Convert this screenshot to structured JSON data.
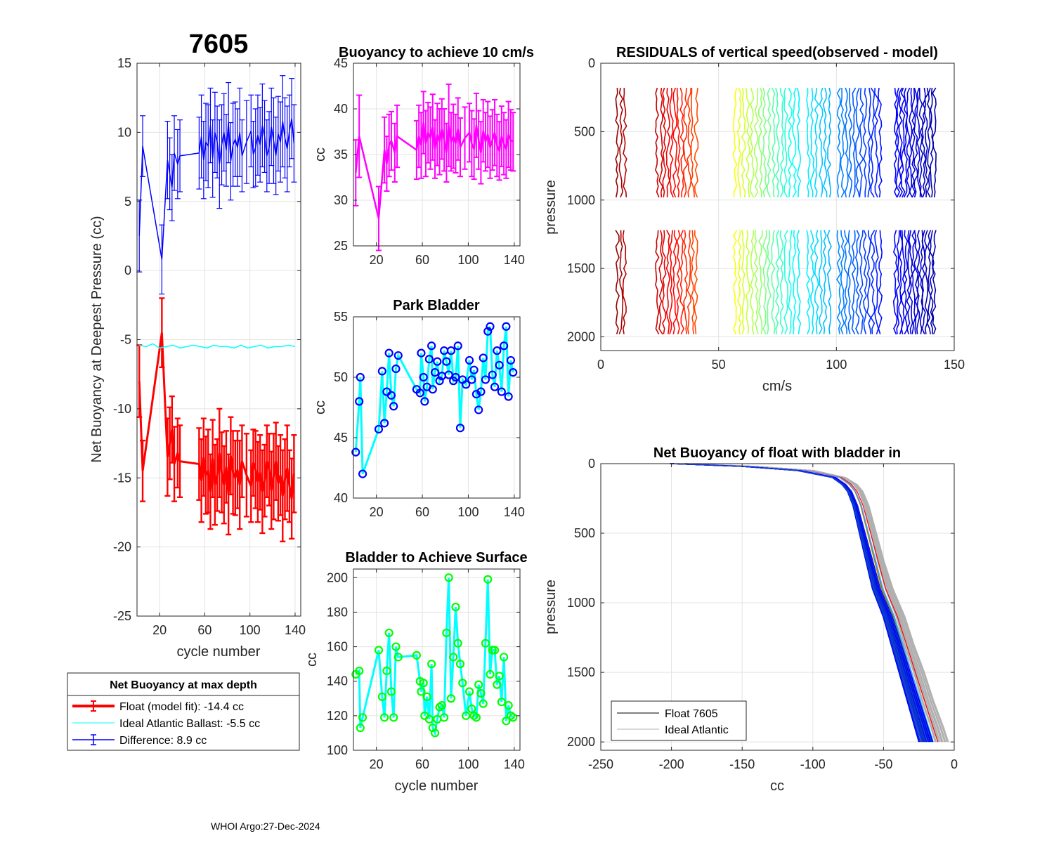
{
  "figure_title": "7605",
  "footer": "WHOI Argo:27-Dec-2024",
  "colors": {
    "float": "#ff0000",
    "ideal": "#00ffff",
    "difference": "#0000ff",
    "magenta": "#ff00ff",
    "park_marker": "#0000ff",
    "surface_marker": "#00ff00",
    "connector": "#00ffff",
    "grid": "#e3e3e3",
    "ideal_profile": "#b0b0b0"
  },
  "legend_main": {
    "title": "Net Buoyancy at max depth",
    "entries": [
      "Float (model fit): -14.4 cc",
      "Ideal Atlantic Ballast:  -5.5 cc",
      "Difference:   8.9 cc"
    ]
  },
  "legend_profile": {
    "entries": [
      "Float 7605",
      "Ideal Atlantic"
    ]
  },
  "chart_data": [
    {
      "id": "net_buoyancy",
      "type": "errorbar",
      "title": "7605",
      "xlabel": "cycle number",
      "ylabel": "Net Buoyancy at Deepest Pressure (cc)",
      "xlim": [
        0,
        145
      ],
      "ylim": [
        -25,
        15
      ],
      "xticks": [
        20,
        60,
        100,
        140
      ],
      "yticks": [
        -25,
        -20,
        -15,
        -10,
        -5,
        0,
        5,
        10,
        15
      ],
      "series": [
        {
          "name": "Float (model fit)",
          "color": "#ff0000",
          "x": [
            2,
            5,
            22,
            27,
            29,
            31,
            33,
            36,
            38,
            55,
            57,
            59,
            61,
            63,
            65,
            67,
            69,
            71,
            73,
            75,
            77,
            79,
            81,
            83,
            85,
            87,
            89,
            91,
            93,
            97,
            101,
            103,
            105,
            107,
            109,
            111,
            113,
            115,
            117,
            119,
            121,
            123,
            125,
            127,
            129,
            131,
            133,
            135,
            137,
            139
          ],
          "y": [
            -8,
            -14.5,
            -4.5,
            -13.5,
            -12.5,
            -11.5,
            -14,
            -13.2,
            -13.8,
            -14,
            -15.2,
            -13.5,
            -14.8,
            -14.5,
            -16,
            -13.6,
            -15.5,
            -14.8,
            -13.2,
            -14.6,
            -15.5,
            -14.2,
            -16.2,
            -13.4,
            -14.6,
            -15,
            -14.4,
            -15.5,
            -13.8,
            -14.8,
            -15.6,
            -13.9,
            -14.4,
            -15.3,
            -14.6,
            -16,
            -15.2,
            -13.8,
            -14.4,
            -15.9,
            -14.9,
            -13.8,
            -15.4,
            -14.8,
            -16.3,
            -15.1,
            -14.3,
            -15.6,
            -16.5,
            -14.7
          ],
          "err": [
            2.6,
            2.2,
            2.5,
            2.8,
            2.6,
            2.4,
            2.7,
            2.5,
            2.6,
            2.6,
            3.0,
            2.8,
            2.8,
            3.0,
            2.7,
            2.8,
            2.9,
            2.6,
            3.2,
            2.9,
            2.8,
            2.6,
            2.9,
            2.8,
            3.0,
            2.7,
            2.8,
            3.2,
            2.6,
            3.0,
            2.6,
            2.4,
            2.8,
            2.9,
            2.7,
            3.0,
            2.6,
            2.6,
            2.6,
            2.8,
            3.1,
            2.8,
            2.7,
            2.9,
            3.3,
            2.9,
            3.1,
            2.6,
            2.9,
            2.8
          ]
        },
        {
          "name": "Ideal Atlantic Ballast",
          "color": "#00ffff",
          "x": [
            2,
            8,
            14,
            20,
            26,
            32,
            38,
            44,
            50,
            56,
            62,
            68,
            74,
            80,
            86,
            92,
            98,
            104,
            110,
            116,
            122,
            128,
            134,
            140
          ],
          "y": [
            -5.4,
            -5.5,
            -5.3,
            -5.6,
            -5.5,
            -5.4,
            -5.6,
            -5.5,
            -5.4,
            -5.5,
            -5.6,
            -5.4,
            -5.5,
            -5.5,
            -5.6,
            -5.4,
            -5.6,
            -5.5,
            -5.4,
            -5.6,
            -5.5,
            -5.5,
            -5.4,
            -5.5
          ]
        },
        {
          "name": "Difference",
          "color": "#0000ff",
          "x": [
            2,
            5,
            22,
            27,
            29,
            31,
            33,
            36,
            38,
            55,
            57,
            59,
            61,
            63,
            65,
            67,
            69,
            71,
            73,
            75,
            77,
            79,
            81,
            83,
            85,
            87,
            89,
            91,
            93,
            97,
            101,
            103,
            105,
            107,
            109,
            111,
            113,
            115,
            117,
            119,
            121,
            123,
            125,
            127,
            129,
            131,
            133,
            135,
            137,
            139
          ],
          "y": [
            2.5,
            9,
            0.8,
            8,
            7,
            6,
            8.5,
            7.7,
            8.3,
            8.5,
            9.7,
            8,
            9.3,
            9,
            10.5,
            8.1,
            10,
            9.3,
            7.7,
            9.1,
            10,
            8.7,
            10.7,
            7.9,
            9.1,
            9.5,
            8.9,
            10,
            8.3,
            9.3,
            10.1,
            8.4,
            8.9,
            9.8,
            9.1,
            10.5,
            9.7,
            8.3,
            8.9,
            10.4,
            9.4,
            8.3,
            9.9,
            9.3,
            10.8,
            9.6,
            8.8,
            10.1,
            11,
            9.2
          ],
          "err": [
            2.6,
            2.2,
            2.5,
            2.8,
            2.6,
            2.4,
            2.7,
            2.5,
            2.6,
            2.6,
            3.0,
            2.8,
            2.8,
            3.0,
            2.7,
            2.8,
            2.9,
            2.6,
            3.2,
            2.9,
            2.8,
            2.6,
            2.9,
            2.8,
            3.0,
            2.7,
            2.8,
            3.2,
            2.6,
            3.0,
            2.6,
            2.4,
            2.8,
            2.9,
            2.7,
            3.0,
            2.6,
            2.6,
            2.6,
            2.8,
            3.1,
            2.8,
            2.7,
            2.9,
            3.3,
            2.9,
            3.1,
            2.6,
            2.9,
            2.8
          ]
        }
      ]
    },
    {
      "id": "buoyancy_10cms",
      "type": "errorbar",
      "title": "Buoyancy to achieve 10 cm/s",
      "xlabel": "",
      "ylabel": "cc",
      "xlim": [
        0,
        145
      ],
      "ylim": [
        25,
        45
      ],
      "xticks": [
        20,
        60,
        100,
        140
      ],
      "yticks": [
        25,
        30,
        35,
        40,
        45
      ],
      "series": [
        {
          "name": "Buoyancy",
          "color": "#ff00ff",
          "x": [
            2,
            5,
            22,
            27,
            29,
            31,
            33,
            36,
            38,
            55,
            57,
            59,
            61,
            63,
            65,
            67,
            69,
            71,
            73,
            75,
            77,
            79,
            81,
            83,
            85,
            87,
            89,
            91,
            93,
            97,
            101,
            103,
            105,
            107,
            109,
            111,
            113,
            115,
            117,
            119,
            121,
            123,
            125,
            127,
            129,
            131,
            133,
            135,
            137,
            139
          ],
          "y": [
            33,
            37,
            28,
            35.5,
            34,
            36,
            36.5,
            35.2,
            37,
            35.5,
            37,
            36,
            38.5,
            36.2,
            37.4,
            36.8,
            38,
            35.6,
            37.2,
            36.4,
            37.8,
            36.6,
            35.2,
            38.2,
            36.4,
            37,
            36.2,
            37.8,
            35.8,
            36.8,
            37.4,
            36.2,
            35.6,
            38.2,
            36.6,
            35.2,
            37.6,
            36.4,
            37.2,
            35.8,
            36.6,
            37.4,
            36,
            35.4,
            37,
            36.2,
            35.6,
            37.2,
            36.6,
            36.4
          ],
          "err": [
            3.6,
            4.5,
            3.5,
            3.6,
            3,
            3.4,
            3.2,
            3.2,
            3.4,
            3.2,
            3.4,
            3.6,
            3.4,
            3.6,
            3.3,
            3.4,
            3.6,
            3.2,
            3.4,
            3.6,
            3.3,
            3.4,
            3.2,
            4.5,
            3.2,
            3.5,
            3.2,
            3.4,
            3.2,
            3.4,
            3.2,
            3.6,
            3.3,
            3.5,
            3.2,
            3.4,
            3.4,
            3.2,
            3.6,
            3.4,
            3.3,
            3.6,
            3.4,
            3.2,
            3.3,
            3.4,
            3.2,
            3.6,
            3.3,
            3.2
          ]
        }
      ]
    },
    {
      "id": "park_bladder",
      "type": "line",
      "title": "Park Bladder",
      "xlabel": "",
      "ylabel": "cc",
      "xlim": [
        0,
        145
      ],
      "ylim": [
        40,
        55
      ],
      "xticks": [
        20,
        60,
        100,
        140
      ],
      "yticks": [
        40,
        45,
        50,
        55
      ],
      "series": [
        {
          "name": "Park Bladder",
          "marker_color": "#0000ff",
          "line_color": "#00ffff",
          "x": [
            2,
            5,
            6,
            8,
            22,
            25,
            27,
            29,
            31,
            33,
            35,
            37,
            39,
            55,
            58,
            59,
            61,
            62,
            64,
            66,
            68,
            69,
            71,
            73,
            75,
            77,
            79,
            81,
            83,
            85,
            87,
            89,
            91,
            93,
            95,
            98,
            101,
            103,
            105,
            107,
            109,
            111,
            113,
            115,
            117,
            119,
            121,
            123,
            125,
            127,
            129,
            131,
            133,
            135,
            137,
            139
          ],
          "y": [
            43.8,
            48,
            50,
            42,
            45.7,
            50.5,
            46.2,
            48.8,
            52,
            48.5,
            47.6,
            50.7,
            51.8,
            49,
            48.7,
            52,
            50,
            48,
            49.2,
            51.5,
            52.6,
            49,
            50.4,
            51.3,
            49.7,
            50.1,
            52.2,
            51.3,
            50.2,
            52.2,
            49.7,
            50,
            52.6,
            45.8,
            49.8,
            49.4,
            51.4,
            49.8,
            50.6,
            48.6,
            47.3,
            48.8,
            51.6,
            49.8,
            53.8,
            54.2,
            50.2,
            49.2,
            52.2,
            51,
            48.8,
            52.6,
            54.2,
            48.4,
            51.4,
            50.4
          ]
        }
      ]
    },
    {
      "id": "bladder_surface",
      "type": "line",
      "title": "Bladder to Achieve Surface",
      "xlabel": "cycle number",
      "ylabel": "cc",
      "xlim": [
        0,
        145
      ],
      "ylim": [
        100,
        205
      ],
      "xticks": [
        20,
        60,
        100,
        140
      ],
      "yticks": [
        100,
        120,
        140,
        160,
        180,
        200
      ],
      "series": [
        {
          "name": "Surface Bladder",
          "marker_color": "#00ff00",
          "line_color": "#00ffff",
          "x": [
            2,
            5,
            6,
            8,
            22,
            25,
            27,
            29,
            31,
            33,
            35,
            37,
            39,
            55,
            58,
            59,
            61,
            62,
            64,
            66,
            68,
            69,
            71,
            73,
            75,
            77,
            79,
            81,
            83,
            85,
            87,
            89,
            91,
            93,
            95,
            98,
            101,
            103,
            105,
            107,
            109,
            111,
            113,
            115,
            117,
            119,
            121,
            123,
            125,
            127,
            129,
            131,
            133,
            135,
            137,
            139
          ],
          "y": [
            144,
            146,
            113,
            119,
            158,
            131,
            119,
            146,
            168,
            134,
            119,
            160,
            154,
            155,
            140,
            134,
            139,
            120,
            131,
            118,
            150,
            113,
            110,
            118,
            125,
            126,
            119,
            168,
            200,
            130,
            154,
            183,
            162,
            150,
            139,
            120,
            134,
            124,
            120,
            119,
            138,
            133,
            127,
            162,
            199,
            144,
            158,
            158,
            138,
            143,
            128,
            154,
            117,
            126,
            120,
            119
          ]
        }
      ]
    },
    {
      "id": "residuals",
      "type": "line",
      "title": "RESIDUALS of vertical speed(observed - model)",
      "xlabel": "cm/s",
      "ylabel": "pressure",
      "xlim": [
        0,
        150
      ],
      "ylim": [
        0,
        2100
      ],
      "y_reversed": true,
      "xticks": [
        0,
        50,
        100,
        150
      ],
      "yticks": [
        0,
        500,
        1000,
        1500,
        2000
      ],
      "groups": [
        {
          "x_start": 7,
          "count": 3,
          "spacing": 1.6,
          "color_start": 0.98,
          "color_end": 0.95
        },
        {
          "x_start": 24,
          "count": 12,
          "spacing": 1.5,
          "color_start": 0.93,
          "color_end": 0.8
        },
        {
          "x_start": 57,
          "count": 16,
          "spacing": 1.8,
          "color_start": 0.62,
          "color_end": 0.36
        },
        {
          "x_start": 88,
          "count": 6,
          "spacing": 1.8,
          "color_start": 0.36,
          "color_end": 0.3
        },
        {
          "x_start": 101,
          "count": 12,
          "spacing": 1.6,
          "color_start": 0.26,
          "color_end": 0.14
        },
        {
          "x_start": 125,
          "count": 16,
          "spacing": 1.1,
          "color_start": 0.13,
          "color_end": 0.04
        }
      ],
      "segments": [
        [
          180,
          1000
        ],
        [
          1220,
          2000
        ]
      ]
    },
    {
      "id": "net_buoyancy_profile",
      "type": "line",
      "title": "Net Buoyancy of float with bladder in",
      "xlabel": "cc",
      "ylabel": "pressure",
      "xlim": [
        -250,
        0
      ],
      "ylim": [
        0,
        2060
      ],
      "y_reversed": true,
      "xticks": [
        -250,
        -200,
        -150,
        -100,
        -50,
        0
      ],
      "yticks": [
        0,
        500,
        1000,
        1500,
        2000
      ],
      "float_profile_shape": {
        "pressure": [
          0,
          20,
          50,
          100,
          150,
          200,
          300,
          500,
          700,
          900,
          1100,
          1300,
          1500,
          1700,
          1900,
          2000
        ],
        "cc": [
          -200,
          -150,
          -110,
          -85,
          -78,
          -74,
          -70,
          -65,
          -60,
          -55,
          -47,
          -41,
          -35,
          -29,
          -23,
          -20
        ]
      },
      "ideal_profile_shape": {
        "pressure": [
          0,
          20,
          50,
          100,
          150,
          200,
          300,
          500,
          700,
          900,
          1100,
          1300,
          1500,
          1700,
          1900,
          2000
        ],
        "cc": [
          -190,
          -140,
          -100,
          -78,
          -70,
          -66,
          -62,
          -57,
          -52,
          -46,
          -38,
          -32,
          -25,
          -19,
          -12,
          -9
        ]
      },
      "n_float_profiles": 45,
      "n_ideal_profiles": 30
    }
  ]
}
